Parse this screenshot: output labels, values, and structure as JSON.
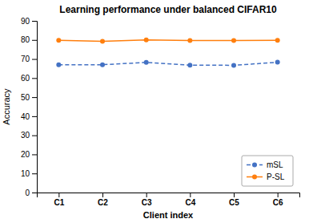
{
  "chart_data": {
    "type": "line",
    "title": "Learning performance under balanced CIFAR10",
    "xlabel": "Client index",
    "ylabel": "Accuracy",
    "categories": [
      "C1",
      "C2",
      "C3",
      "C4",
      "C5",
      "C6"
    ],
    "series": [
      {
        "name": "mSL",
        "color": "#4472c4",
        "values": [
          67.0,
          67.0,
          68.2,
          66.8,
          66.7,
          68.3
        ],
        "line_style": "dashed",
        "marker": "circle"
      },
      {
        "name": "P-SL",
        "color": "#ff7f0e",
        "values": [
          79.8,
          79.3,
          80.0,
          79.7,
          79.7,
          79.8
        ],
        "line_style": "solid",
        "marker": "circle"
      }
    ],
    "ylim": [
      0,
      90
    ],
    "yticks": [
      0,
      10,
      20,
      30,
      40,
      50,
      60,
      70,
      80,
      90
    ],
    "grid": false,
    "legend": "lower right"
  }
}
